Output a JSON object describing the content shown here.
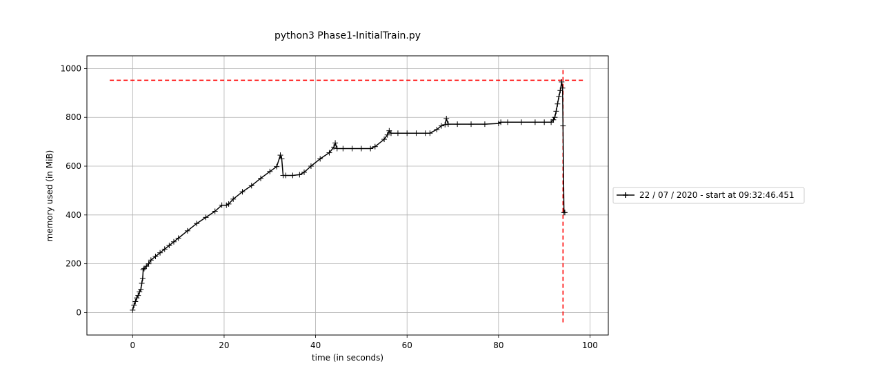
{
  "chart_data": {
    "type": "line",
    "title": "python3 Phase1-InitialTrain.py",
    "xlabel": "time (in seconds)",
    "ylabel": "memory used (in MiB)",
    "xlim": [
      -10,
      104
    ],
    "ylim": [
      -92,
      1052
    ],
    "xticks": [
      0,
      20,
      40,
      60,
      80,
      100
    ],
    "yticks": [
      0,
      200,
      400,
      600,
      800,
      1000
    ],
    "grid": true,
    "legend_position": "right, outside plot",
    "series": [
      {
        "name": "22 / 07 / 2020 - start at 09:32:46.451",
        "color": "#000000",
        "marker": "+",
        "x": [
          0,
          0.3,
          0.6,
          0.9,
          1.2,
          1.5,
          1.8,
          2.0,
          2.2,
          2.3,
          2.5,
          3,
          3.5,
          4,
          5,
          6,
          7,
          8,
          9,
          10,
          12,
          14,
          16,
          18,
          19.5,
          20.5,
          21,
          22,
          24,
          26,
          28,
          30,
          31.5,
          32.3,
          32.6,
          32.9,
          33.5,
          35,
          36.5,
          37.5,
          39,
          41,
          43,
          44,
          44.3,
          44.7,
          46,
          48,
          50,
          52,
          53,
          55,
          55.7,
          56.1,
          56.5,
          58,
          60,
          62,
          64,
          65,
          66.5,
          67.5,
          68.3,
          68.6,
          69,
          71,
          74,
          77,
          80,
          80.5,
          82,
          85,
          88,
          90,
          91.5,
          92,
          92.3,
          92.6,
          92.9,
          93.2,
          93.5,
          93.8,
          94,
          94.1,
          94.3,
          94.5
        ],
        "y": [
          10,
          30,
          45,
          60,
          70,
          85,
          95,
          120,
          140,
          175,
          180,
          190,
          200,
          215,
          230,
          245,
          260,
          275,
          290,
          305,
          335,
          365,
          390,
          415,
          440,
          440,
          445,
          465,
          495,
          520,
          550,
          578,
          598,
          645,
          630,
          562,
          562,
          562,
          565,
          575,
          600,
          630,
          655,
          678,
          695,
          672,
          672,
          672,
          672,
          672,
          680,
          710,
          728,
          745,
          735,
          735,
          735,
          735,
          735,
          735,
          750,
          765,
          770,
          795,
          772,
          772,
          772,
          772,
          775,
          780,
          780,
          780,
          780,
          780,
          780,
          790,
          800,
          825,
          855,
          885,
          910,
          945,
          920,
          765,
          410,
          410
        ]
      }
    ],
    "reference_lines": [
      {
        "orientation": "horizontal",
        "value": 952,
        "xrange": [
          -5,
          99
        ],
        "color": "#ff0000",
        "style": "dashed"
      },
      {
        "orientation": "vertical",
        "value": 94.1,
        "yrange": [
          -40,
          1000
        ],
        "color": "#ff0000",
        "style": "dashed"
      }
    ]
  }
}
